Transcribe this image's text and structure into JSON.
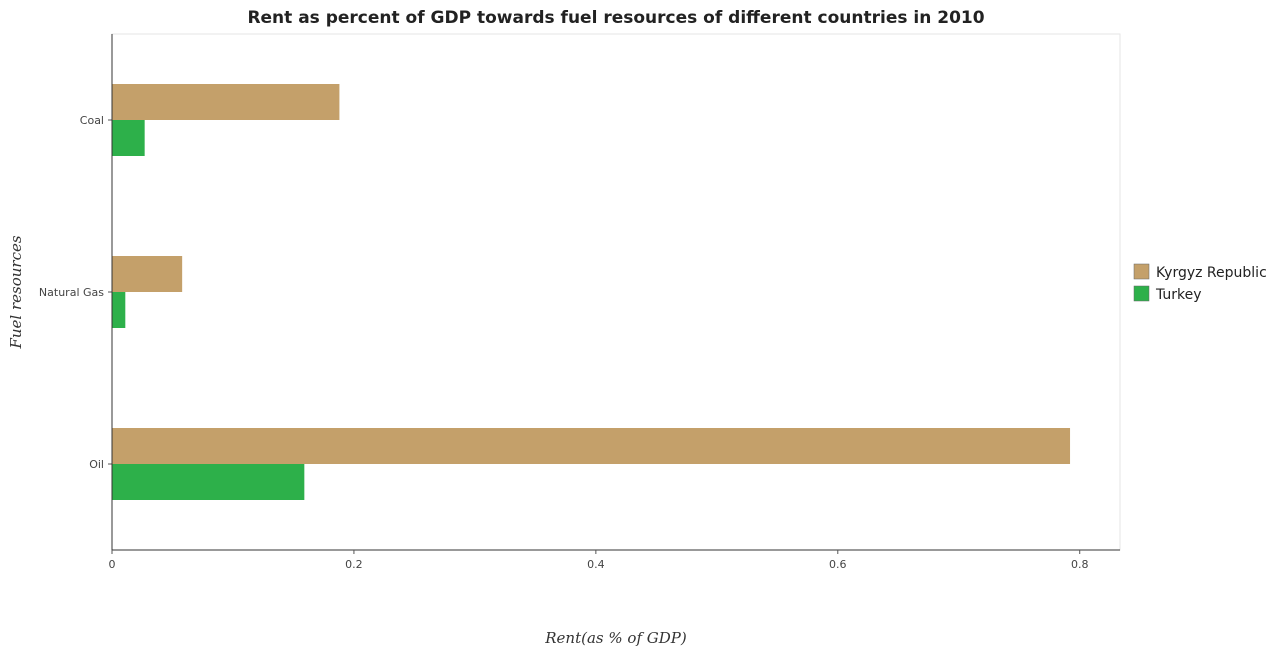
{
  "chart_data": {
    "type": "bar",
    "orientation": "horizontal",
    "title": "Rent as percent of GDP towards fuel resources of different countries in 2010",
    "xlabel": "Rent(as % of GDP)",
    "ylabel": "Fuel resources",
    "categories": [
      "Coal",
      "Natural Gas",
      "Oil"
    ],
    "xlim": [
      0,
      0.8333
    ],
    "xticks": [
      0,
      0.2,
      0.4,
      0.6,
      0.8
    ],
    "xtick_labels": [
      "0",
      "0.2",
      "0.4",
      "0.6",
      "0.8"
    ],
    "series": [
      {
        "name": "Kyrgyz Republic",
        "color": "#c4a06a",
        "values": [
          0.188,
          0.058,
          0.792
        ]
      },
      {
        "name": "Turkey",
        "color": "#2db04a",
        "values": [
          0.027,
          0.011,
          0.159
        ]
      }
    ],
    "legend_position": "right",
    "grid": false
  }
}
